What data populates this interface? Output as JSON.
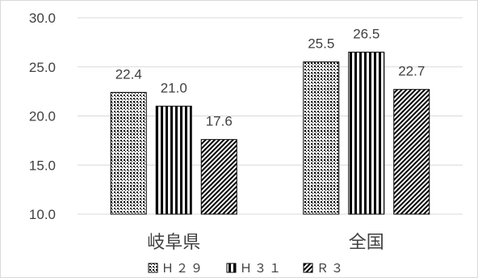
{
  "chart_data": {
    "type": "bar",
    "categories": [
      "岐阜県",
      "全国"
    ],
    "series": [
      {
        "name": "Ｈ２９",
        "values": [
          22.4,
          25.5
        ],
        "pattern": "dots"
      },
      {
        "name": "Ｈ３１",
        "values": [
          21.0,
          26.5
        ],
        "pattern": "vertical-stripes"
      },
      {
        "name": "Ｒ３",
        "values": [
          17.6,
          22.7
        ],
        "pattern": "diagonal-dense"
      }
    ],
    "yticks": [
      "10.0",
      "15.0",
      "20.0",
      "25.0",
      "30.0"
    ],
    "ylim": [
      10,
      30
    ],
    "grid": true,
    "legend_position": "bottom",
    "title": "",
    "xlabel": "",
    "ylabel": ""
  }
}
